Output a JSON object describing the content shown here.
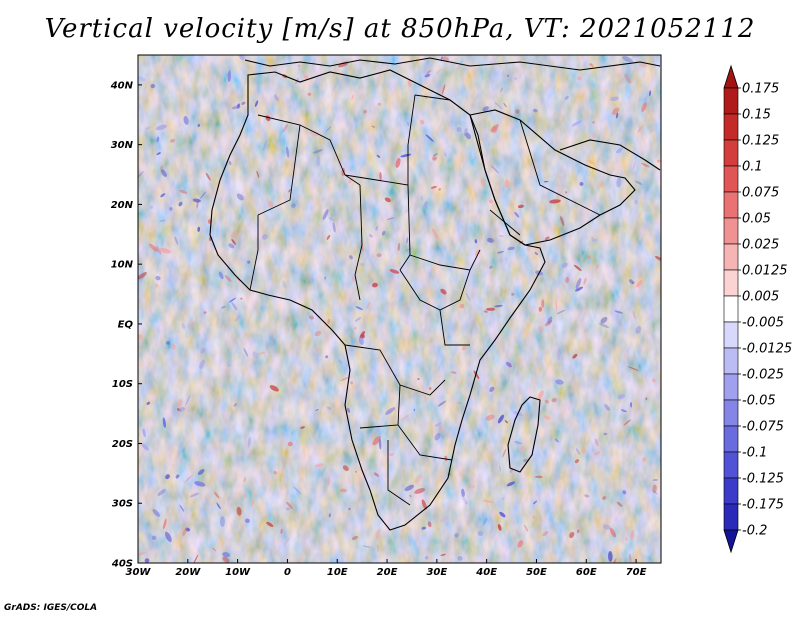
{
  "title": "Vertical velocity [m/s] at 850hPa, VT: 2021052112",
  "credit": "GrADS: IGES/COLA",
  "colors": {
    "land_outline": "#000000",
    "map_frame": "#000000"
  },
  "map": {
    "projection": "lat-lon",
    "lon_range": [
      -30,
      75
    ],
    "lat_range": [
      -40,
      45
    ],
    "lon_ticks": [
      {
        "value": -30,
        "label": "30W"
      },
      {
        "value": -20,
        "label": "20W"
      },
      {
        "value": -10,
        "label": "10W"
      },
      {
        "value": 0,
        "label": "0"
      },
      {
        "value": 10,
        "label": "10E"
      },
      {
        "value": 20,
        "label": "20E"
      },
      {
        "value": 30,
        "label": "30E"
      },
      {
        "value": 40,
        "label": "40E"
      },
      {
        "value": 50,
        "label": "50E"
      },
      {
        "value": 60,
        "label": "60E"
      },
      {
        "value": 70,
        "label": "70E"
      }
    ],
    "lat_ticks": [
      {
        "value": 40,
        "label": "40N"
      },
      {
        "value": 30,
        "label": "30N"
      },
      {
        "value": 20,
        "label": "20N"
      },
      {
        "value": 10,
        "label": "10N"
      },
      {
        "value": 0,
        "label": "EQ"
      },
      {
        "value": -10,
        "label": "10S"
      },
      {
        "value": -20,
        "label": "20S"
      },
      {
        "value": -30,
        "label": "30S"
      },
      {
        "value": -40,
        "label": "40S"
      }
    ]
  },
  "colorbar": {
    "levels": [
      {
        "label": "0.175",
        "color": "#b01a1a"
      },
      {
        "label": "0.15",
        "color": "#c42a2a"
      },
      {
        "label": "0.125",
        "color": "#d43d3d"
      },
      {
        "label": "0.1",
        "color": "#e05555"
      },
      {
        "label": "0.075",
        "color": "#ea7272"
      },
      {
        "label": "0.05",
        "color": "#f19292"
      },
      {
        "label": "0.025",
        "color": "#f7b4b4"
      },
      {
        "label": "0.0125",
        "color": "#fbd3d3"
      },
      {
        "label": "0.005",
        "color": "#ffffff"
      },
      {
        "label": "-0.005",
        "color": "#d8d8fa"
      },
      {
        "label": "-0.0125",
        "color": "#bcbcf5"
      },
      {
        "label": "-0.025",
        "color": "#a0a0ef"
      },
      {
        "label": "-0.05",
        "color": "#8585e8"
      },
      {
        "label": "-0.075",
        "color": "#6b6be0"
      },
      {
        "label": "-0.1",
        "color": "#5252d6"
      },
      {
        "label": "-0.125",
        "color": "#3c3cc9"
      },
      {
        "label": "-0.175",
        "color": "#2a2ab8"
      },
      {
        "label": "-0.2",
        "color": "#1e1ea5"
      }
    ],
    "top_color": "#a11414",
    "bottom_color": "#14149a"
  }
}
